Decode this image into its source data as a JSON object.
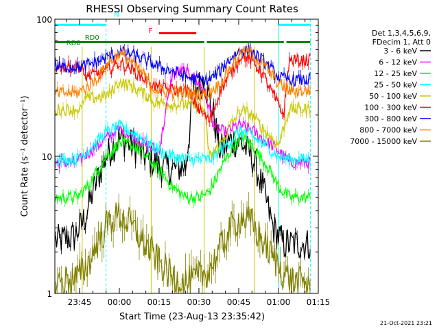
{
  "chart_data": {
    "type": "line",
    "title": "RHESSI Observing Summary Count Rates",
    "xlabel": "Start Time (23-Aug-13 23:35:42)",
    "ylabel": "Count Rate (s⁻¹ detector⁻¹)",
    "y_scale": "log",
    "ylim": [
      1,
      100
    ],
    "xlim": [
      "23:35:42",
      "01:15:00"
    ],
    "x_ticks": [
      "23:45",
      "00:00",
      "00:15",
      "00:30",
      "00:45",
      "01:00",
      "01:15"
    ],
    "y_ticks": [
      "1",
      "10",
      "100"
    ],
    "footer": "21-Oct-2021 23:21",
    "legend": {
      "placement": "right",
      "header": [
        "Det 1,3,4,5,6,9,",
        "FDecim 1, Att 0"
      ],
      "entries": [
        {
          "label": "3 - 6 keV",
          "color": "#000000"
        },
        {
          "label": "6 - 12 keV",
          "color": "#ff00ff"
        },
        {
          "label": "12 - 25 keV",
          "color": "#00ff00"
        },
        {
          "label": "25 - 50 keV",
          "color": "#00ffff"
        },
        {
          "label": "50 - 100 keV",
          "color": "#c8c800"
        },
        {
          "label": "100 - 300 keV",
          "color": "#ff0000"
        },
        {
          "label": "300 - 800 keV",
          "color": "#0000ff"
        },
        {
          "label": "800 - 7000 keV",
          "color": "#ff8000"
        },
        {
          "label": "7000 - 15000 keV",
          "color": "#808000"
        }
      ]
    },
    "flags": [
      {
        "label": "N",
        "color": "#00ffff",
        "value": 91,
        "intervals": [
          [
            "23:35:42",
            "23:55:00"
          ],
          [
            "01:00:00",
            "01:12:00"
          ]
        ]
      },
      {
        "label": "F",
        "color": "#ff0000",
        "value": 79,
        "intervals": [
          [
            "00:15:00",
            "00:29:00"
          ]
        ]
      },
      {
        "label": "RD0",
        "color": "#008000",
        "value": 68,
        "intervals": [
          [
            "23:35:42",
            "00:32:00"
          ],
          [
            "00:33:00",
            "01:02:00"
          ],
          [
            "01:03:00",
            "01:12:00"
          ]
        ]
      },
      {
        "label": "RD8",
        "color": "#008000",
        "value": 63,
        "intervals": []
      }
    ],
    "markers": {
      "solid_cyan": [
        "01:00:00"
      ],
      "dashed_cyan": [
        "23:55:00",
        "01:12:00"
      ],
      "olive_vertical": [
        "23:46:00",
        "00:12:00",
        "00:32:00",
        "00:51:00"
      ]
    },
    "series": [
      {
        "name": "3 - 6 keV",
        "color": "#000000",
        "x": [
          "23:36",
          "23:43",
          "23:47",
          "23:50",
          "23:55",
          "00:00",
          "00:05",
          "00:10",
          "00:15",
          "00:20",
          "00:25",
          "00:28",
          "00:32",
          "00:35",
          "00:38",
          "00:42",
          "00:46",
          "00:50",
          "00:54",
          "00:58",
          "01:02",
          "01:12"
        ],
        "y": [
          2.4,
          2.6,
          3.5,
          5.5,
          10,
          13.5,
          12,
          10,
          8.5,
          8,
          8.5,
          30,
          36,
          22,
          11,
          13,
          12.5,
          10,
          6,
          3,
          2.3,
          2.3
        ]
      },
      {
        "name": "6 - 12 keV",
        "color": "#ff00ff",
        "x": [
          "23:36",
          "23:44",
          "23:48",
          "23:52",
          "23:55",
          "00:00",
          "00:05",
          "00:10",
          "00:15",
          "00:20",
          "00:24",
          "00:28",
          "00:32",
          "00:36",
          "00:40",
          "00:45",
          "00:50",
          "00:55",
          "01:00",
          "01:04",
          "01:12"
        ],
        "y": [
          9,
          9,
          10.5,
          12,
          13.5,
          16,
          14,
          12,
          11,
          40,
          42,
          38,
          30,
          16,
          15,
          17,
          15.5,
          13,
          11,
          9,
          9
        ]
      },
      {
        "name": "12 - 25 keV",
        "color": "#00ff00",
        "x": [
          "23:36",
          "23:44",
          "23:48",
          "23:52",
          "23:55",
          "00:00",
          "00:05",
          "00:10",
          "00:15",
          "00:20",
          "00:25",
          "00:30",
          "00:34",
          "00:38",
          "00:42",
          "00:46",
          "00:50",
          "00:55",
          "01:00",
          "01:04",
          "01:12"
        ],
        "y": [
          5,
          5,
          6,
          8,
          10,
          12.5,
          12,
          10,
          8,
          6,
          5,
          5,
          5.5,
          8,
          11,
          14,
          12,
          9,
          6,
          5,
          5
        ]
      },
      {
        "name": "25 - 50 keV",
        "color": "#00ffff",
        "x": [
          "23:36",
          "23:44",
          "23:48",
          "23:52",
          "23:55",
          "00:00",
          "00:05",
          "00:10",
          "00:15",
          "00:20",
          "00:25",
          "00:30",
          "00:34",
          "00:38",
          "00:42",
          "00:46",
          "00:50",
          "00:55",
          "01:00",
          "01:04",
          "01:12"
        ],
        "y": [
          9.5,
          9.5,
          11,
          13,
          15,
          16.5,
          15,
          13,
          11,
          10,
          9.5,
          9.5,
          9.5,
          11,
          13,
          15.5,
          14,
          12,
          10,
          9.5,
          9.5
        ]
      },
      {
        "name": "50 - 100 keV",
        "color": "#c8c800",
        "x": [
          "23:36",
          "23:46",
          "23:46.5",
          "23:52",
          "23:56",
          "00:00",
          "00:05",
          "00:10",
          "00:12",
          "00:12.5",
          "00:20",
          "00:25",
          "00:30",
          "00:32",
          "00:34",
          "00:38",
          "00:42",
          "00:46",
          "00:50",
          "00:54",
          "01:00",
          "01:04",
          "01:12"
        ],
        "y": [
          22,
          22,
          26,
          27,
          28,
          35,
          32,
          28,
          26,
          25,
          24,
          24,
          23,
          22,
          10,
          12,
          17,
          22,
          20,
          16,
          12,
          22,
          22
        ]
      },
      {
        "name": "100 - 300 keV",
        "color": "#ff0000",
        "x": [
          "23:36",
          "23:46",
          "23:46.5",
          "23:52",
          "23:56",
          "00:00",
          "00:04",
          "00:10",
          "00:14",
          "00:18",
          "00:22",
          "00:26",
          "00:30",
          "00:34",
          "00:38",
          "00:42",
          "00:46",
          "00:50",
          "00:54",
          "00:58",
          "01:02",
          "01:04",
          "01:12"
        ],
        "y": [
          45,
          45,
          38,
          40,
          43,
          48,
          44,
          36,
          32,
          31,
          30,
          30,
          22,
          18,
          30,
          40,
          55,
          50,
          40,
          28,
          20,
          50,
          50
        ]
      },
      {
        "name": "300 - 800 keV",
        "color": "#0000ff",
        "x": [
          "23:36",
          "23:46",
          "23:50",
          "23:55",
          "00:00",
          "00:05",
          "00:10",
          "00:15",
          "00:20",
          "00:25",
          "00:30",
          "00:34",
          "00:38",
          "00:42",
          "00:46",
          "00:50",
          "00:55",
          "01:00",
          "01:04",
          "01:12"
        ],
        "y": [
          45,
          45,
          48,
          52,
          58,
          55,
          50,
          45,
          42,
          38,
          36,
          36,
          42,
          52,
          60,
          58,
          48,
          38,
          36,
          36
        ]
      },
      {
        "name": "800 - 7000 keV",
        "color": "#ff8000",
        "x": [
          "23:36",
          "23:44",
          "23:48",
          "23:52",
          "23:56",
          "00:00",
          "00:04",
          "00:10",
          "00:12",
          "00:15",
          "00:20",
          "00:25",
          "00:30",
          "00:34",
          "00:38",
          "00:42",
          "00:46",
          "00:50",
          "00:55",
          "01:00",
          "01:04",
          "01:12"
        ],
        "y": [
          29,
          29,
          32,
          38,
          48,
          56,
          50,
          38,
          32,
          30,
          29,
          29,
          28,
          29,
          34,
          45,
          58,
          56,
          45,
          34,
          30,
          30
        ]
      },
      {
        "name": "7000 - 15000 keV",
        "color": "#808000",
        "x": [
          "23:36",
          "23:44",
          "23:48",
          "23:52",
          "23:56",
          "00:00",
          "00:04",
          "00:08",
          "00:12",
          "00:16",
          "00:20",
          "00:26",
          "00:30",
          "00:34",
          "00:38",
          "00:42",
          "00:46",
          "00:50",
          "00:54",
          "00:58",
          "01:02",
          "01:06",
          "01:12"
        ],
        "y": [
          1.2,
          1.3,
          1.6,
          2.4,
          3.3,
          3.7,
          3.2,
          2.5,
          2,
          1.6,
          1.3,
          1.2,
          1.3,
          1.5,
          2.1,
          3,
          3.6,
          3.2,
          2.4,
          1.8,
          1.4,
          1.2,
          1.2
        ]
      }
    ]
  }
}
